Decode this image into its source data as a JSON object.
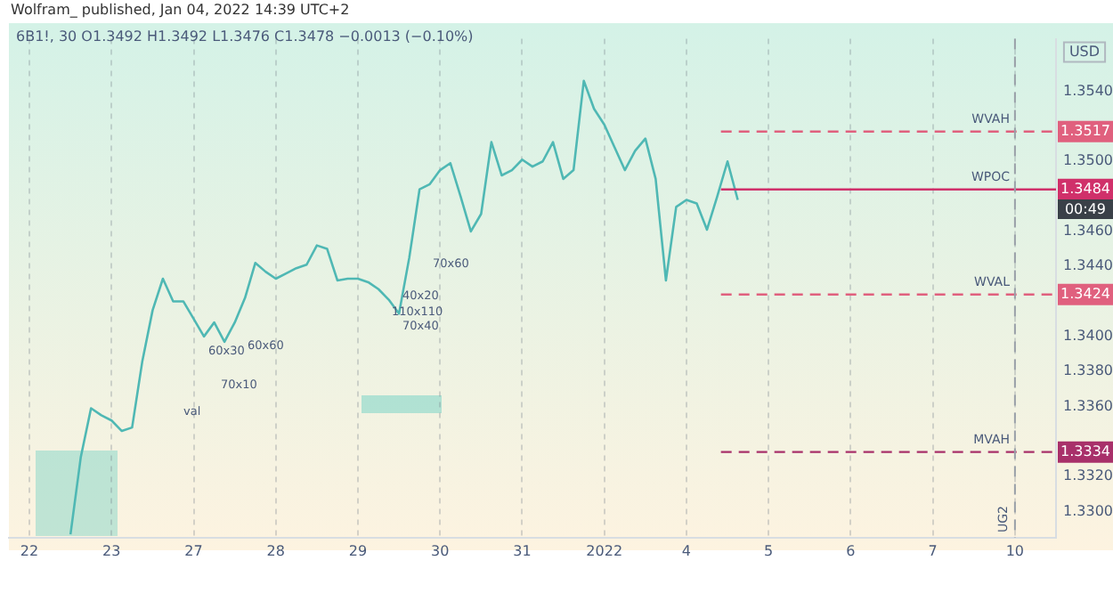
{
  "chart_data": {
    "type": "line",
    "title": "6B1!, 30  O1.3492 H1.3492 L1.3476 C1.3478 −0.0013 (−0.10%)",
    "subtitle": "Wolfram_ published, Jan 04, 2022 14:39 UTC+2",
    "ylabel": "USD",
    "categories": [
      null,
      null,
      "22",
      null,
      null,
      null,
      null,
      null,
      null,
      null,
      "23",
      null,
      null,
      null,
      null,
      null,
      null,
      null,
      "27",
      null,
      null,
      null,
      null,
      null,
      null,
      null,
      "28",
      null,
      null,
      null,
      null,
      null,
      null,
      null,
      "29",
      null,
      null,
      null,
      null,
      null,
      null,
      null,
      "30",
      null,
      null,
      null,
      null,
      null,
      null,
      null,
      "31",
      null,
      null,
      null,
      null,
      null,
      null,
      null,
      "2022",
      null,
      null,
      null,
      null,
      null,
      null,
      null,
      "4",
      null,
      null,
      null,
      null,
      null,
      null,
      null,
      "5",
      null,
      null,
      null,
      null,
      null,
      null,
      null,
      "6",
      null,
      null,
      null,
      null,
      null,
      null,
      null,
      "7",
      null,
      null,
      null,
      null,
      null,
      null,
      null,
      "10",
      null,
      null,
      null,
      null
    ],
    "series": [
      {
        "color": "#4fb8b4",
        "values": [
          null,
          null,
          null,
          null,
          null,
          null,
          1.3287,
          1.3331,
          1.3359,
          1.3355,
          1.3352,
          1.3346,
          1.3348,
          1.3386,
          1.3415,
          1.3433,
          1.342,
          1.342,
          1.341,
          1.34,
          1.3408,
          1.3397,
          1.3408,
          1.3422,
          1.3442,
          1.3437,
          1.3433,
          1.3436,
          1.3439,
          1.3441,
          1.3452,
          1.345,
          1.3432,
          1.3433,
          1.3433,
          1.3431,
          1.3427,
          1.3421,
          1.3413,
          1.3445,
          1.3484,
          1.3487,
          1.3495,
          1.3499,
          1.348,
          1.346,
          1.347,
          1.3511,
          1.3492,
          1.3495,
          1.3501,
          1.3497,
          1.35,
          1.3511,
          1.349,
          1.3495,
          1.3546,
          1.353,
          1.3521,
          1.3508,
          1.3495,
          1.3506,
          1.3513,
          1.349,
          1.3432,
          1.3474,
          1.3478,
          1.3476,
          1.3461,
          1.348,
          1.35,
          1.3478,
          null,
          null,
          null,
          null,
          null,
          null,
          null,
          null,
          null,
          null,
          null,
          null,
          null,
          null,
          null,
          null,
          null,
          null,
          null,
          null,
          null,
          null,
          null,
          null,
          null,
          null,
          null,
          null,
          null,
          null,
          null
        ]
      }
    ],
    "ylim": [
      1.3285,
      1.357
    ],
    "yticks": [
      {
        "value": 1.33,
        "label": "1.3300"
      },
      {
        "value": 1.332,
        "label": "1.3320"
      },
      {
        "value": 1.336,
        "label": "1.3360"
      },
      {
        "value": 1.338,
        "label": "1.3380"
      },
      {
        "value": 1.34,
        "label": "1.3400"
      },
      {
        "value": 1.344,
        "label": "1.3440"
      },
      {
        "value": 1.346,
        "label": "1.3460"
      },
      {
        "value": 1.35,
        "label": "1.3500"
      },
      {
        "value": 1.354,
        "label": "1.3540"
      }
    ],
    "grid": "x",
    "ref_lines": [
      {
        "axis": "y",
        "value": 1.3517,
        "label": "WVAH",
        "color": "#e0607e",
        "line_style": "dashed"
      },
      {
        "axis": "y",
        "value": 1.3484,
        "label": "WPOC",
        "color": "#d0306a",
        "line_style": "solid"
      },
      {
        "axis": "y",
        "value": 1.3424,
        "label": "WVAL",
        "color": "#e0607e",
        "line_style": "dashed"
      },
      {
        "axis": "y",
        "value": 1.3334,
        "label": "MVAH",
        "color": "#a8306a",
        "line_style": "dashed"
      },
      {
        "axis": "x",
        "value": "10",
        "label": "UG2",
        "color": "#9aa0a8",
        "line_style": "dashed"
      }
    ],
    "annotations": [
      "00:49",
      "70x60",
      "40x20",
      "110x110",
      "70x40",
      "60x30",
      "60x60",
      "70x10",
      "val",
      {
        "text": "1.3517",
        "y": 1.3517
      },
      {
        "text": "1.3484",
        "y": 1.3484
      },
      {
        "text": "1.3424",
        "y": 1.3424
      },
      {
        "text": "1.3334",
        "y": 1.3334
      }
    ]
  }
}
